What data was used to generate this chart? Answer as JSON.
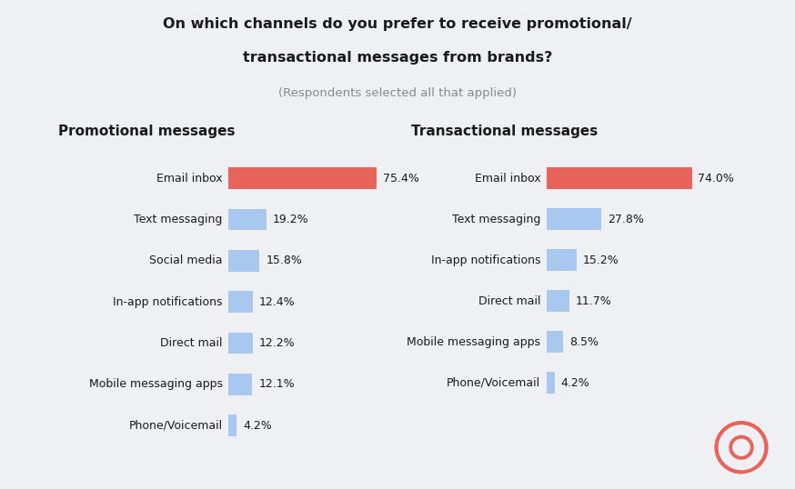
{
  "title_line1": "On which channels do you prefer to receive promotional/",
  "title_line2": "transactional messages from brands?",
  "subtitle": "(Respondents selected all that applied)",
  "background_color": "#eef0f4",
  "promo_header": "Promotional messages",
  "trans_header": "Transactional messages",
  "promo_categories": [
    "Email inbox",
    "Text messaging",
    "Social media",
    "In-app notifications",
    "Direct mail",
    "Mobile messaging apps",
    "Phone/Voicemail"
  ],
  "promo_values": [
    75.4,
    19.2,
    15.8,
    12.4,
    12.2,
    12.1,
    4.2
  ],
  "trans_categories": [
    "Email inbox",
    "Text messaging",
    "In-app notifications",
    "Direct mail",
    "Mobile messaging apps",
    "Phone/Voicemail"
  ],
  "trans_values": [
    74.0,
    27.8,
    15.2,
    11.7,
    8.5,
    4.2
  ],
  "bar_color_red": "#e8635a",
  "bar_color_blue": "#a8c8ef",
  "text_color": "#1a1a1a",
  "title_color": "#1a1a1a",
  "subtitle_color": "#888888",
  "header_color": "#1a1a1a",
  "max_bar_width": 75.4,
  "bar_height": 0.52,
  "logo_color": "#e8635a"
}
